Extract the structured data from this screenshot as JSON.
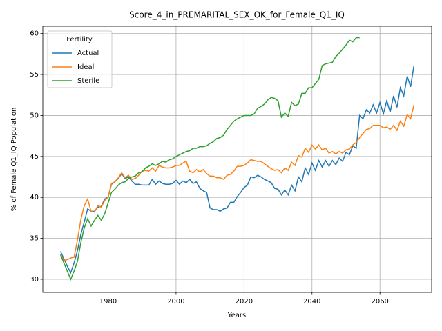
{
  "chart_data": {
    "type": "line",
    "title": "Score_4_in_PREMARITAL_SEX_OK_for_Female_Q1_IQ",
    "xlabel": "Years",
    "ylabel": "% of Female Q1_IQ Population",
    "legend_title": "Fertility",
    "legend": "upper left",
    "grid": true,
    "x": [
      1966,
      1967,
      1968,
      1969,
      1970,
      1971,
      1972,
      1973,
      1974,
      1975,
      1976,
      1977,
      1978,
      1979,
      1980,
      1981,
      1982,
      1983,
      1984,
      1985,
      1986,
      1987,
      1988,
      1989,
      1990,
      1991,
      1992,
      1993,
      1994,
      1995,
      1996,
      1997,
      1998,
      1999,
      2000,
      2001,
      2002,
      2003,
      2004,
      2005,
      2006,
      2007,
      2008,
      2009,
      2010,
      2011,
      2012,
      2013,
      2014,
      2015,
      2016,
      2017,
      2018,
      2019,
      2020,
      2021,
      2022,
      2023,
      2024,
      2025,
      2026,
      2027,
      2028,
      2029,
      2030,
      2031,
      2032,
      2033,
      2034,
      2035,
      2036,
      2037,
      2038,
      2039,
      2040,
      2041,
      2042,
      2043,
      2044,
      2045,
      2046,
      2047,
      2048,
      2049,
      2050,
      2051,
      2052,
      2053,
      2054,
      2055,
      2056,
      2057,
      2058,
      2059,
      2060,
      2061,
      2062,
      2063,
      2064,
      2065,
      2066,
      2067,
      2068,
      2069,
      2070
    ],
    "series": [
      {
        "name": "Actual",
        "color": "#1f77b4",
        "values": [
          33.4,
          32.5,
          31.6,
          30.8,
          32.0,
          33.5,
          35.5,
          37.0,
          38.6,
          38.3,
          38.3,
          38.8,
          38.9,
          39.8,
          40.0,
          41.6,
          41.9,
          42.3,
          42.9,
          42.3,
          42.5,
          42.0,
          41.6,
          41.6,
          41.5,
          41.5,
          41.5,
          42.2,
          41.6,
          42.0,
          41.7,
          41.6,
          41.6,
          41.7,
          42.1,
          41.6,
          42.0,
          41.8,
          42.2,
          41.7,
          41.9,
          41.1,
          40.8,
          40.6,
          38.7,
          38.5,
          38.5,
          38.3,
          38.6,
          38.7,
          39.4,
          39.4,
          40.1,
          40.6,
          41.2,
          41.5,
          42.5,
          42.4,
          42.7,
          42.5,
          42.2,
          42.0,
          41.8,
          41.1,
          41.0,
          40.3,
          40.9,
          40.3,
          41.5,
          40.8,
          42.5,
          41.9,
          43.6,
          42.8,
          44.2,
          43.3,
          44.5,
          43.7,
          44.5,
          43.8,
          44.5,
          44.0,
          44.8,
          44.4,
          45.5,
          45.2,
          46.3,
          46.0,
          50.0,
          49.6,
          50.7,
          50.3,
          51.3,
          50.3,
          51.6,
          50.2,
          51.8,
          50.4,
          52.4,
          51.0,
          53.4,
          52.4,
          54.8,
          53.5,
          56.1
        ]
      },
      {
        "name": "Ideal",
        "color": "#ff7f0e",
        "values": [
          33.0,
          32.3,
          32.4,
          32.6,
          32.7,
          34.8,
          37.3,
          39.0,
          39.8,
          38.3,
          38.2,
          39.0,
          38.8,
          39.6,
          40.0,
          41.7,
          41.9,
          42.4,
          43.0,
          42.4,
          42.7,
          42.2,
          42.3,
          42.7,
          43.2,
          43.3,
          43.2,
          43.6,
          43.2,
          43.9,
          43.7,
          43.6,
          43.6,
          43.7,
          43.9,
          43.9,
          44.2,
          44.4,
          43.2,
          43.0,
          43.4,
          43.1,
          43.4,
          42.9,
          42.6,
          42.6,
          42.4,
          42.4,
          42.2,
          42.7,
          42.8,
          43.2,
          43.8,
          43.8,
          43.9,
          44.2,
          44.6,
          44.5,
          44.4,
          44.4,
          44.1,
          43.8,
          43.5,
          43.3,
          43.4,
          43.0,
          43.6,
          43.3,
          44.3,
          43.9,
          45.1,
          44.9,
          46.0,
          45.5,
          46.4,
          45.9,
          46.4,
          45.8,
          46.0,
          45.4,
          45.6,
          45.3,
          45.6,
          45.4,
          45.8,
          45.9,
          46.4,
          46.7,
          47.3,
          47.8,
          48.3,
          48.4,
          48.8,
          48.8,
          48.8,
          48.5,
          48.6,
          48.3,
          48.8,
          48.2,
          49.3,
          48.7,
          50.1,
          49.6,
          51.3
        ]
      },
      {
        "name": "Sterile",
        "color": "#2ca02c",
        "values": [
          33.0,
          32.0,
          31.0,
          30.0,
          31.0,
          32.2,
          34.5,
          36.3,
          37.4,
          36.5,
          37.2,
          37.8,
          37.2,
          38.0,
          39.3,
          40.6,
          41.0,
          41.5,
          41.8,
          41.9,
          42.3,
          42.5,
          42.6,
          43.0,
          43.1,
          43.6,
          43.8,
          44.1,
          43.9,
          44.1,
          44.4,
          44.3,
          44.6,
          44.7,
          45.0,
          45.2,
          45.4,
          45.6,
          45.7,
          46.0,
          46.0,
          46.2,
          46.2,
          46.3,
          46.6,
          46.8,
          47.2,
          47.3,
          47.6,
          48.3,
          48.8,
          49.3,
          49.6,
          49.8,
          50.0,
          50.0,
          50.0,
          50.2,
          50.9,
          51.1,
          51.4,
          51.9,
          52.2,
          52.1,
          51.8,
          49.8,
          50.3,
          49.9,
          51.6,
          51.2,
          51.4,
          52.7,
          52.7,
          53.4,
          53.4,
          53.9,
          54.4,
          56.1,
          56.3,
          56.4,
          56.5,
          57.2,
          57.6,
          58.1,
          58.6,
          59.2,
          59.0,
          59.5,
          59.5,
          null,
          null,
          null,
          null,
          null,
          null,
          null,
          null,
          null,
          null,
          null,
          null,
          null,
          null,
          null,
          null
        ]
      }
    ],
    "xlim": [
      1960.8,
      2075.2
    ],
    "ylim": [
      28.4,
      60.9
    ],
    "xticks": [
      1980,
      2000,
      2020,
      2040,
      2060
    ],
    "yticks": [
      30,
      35,
      40,
      45,
      50,
      55,
      60
    ]
  }
}
